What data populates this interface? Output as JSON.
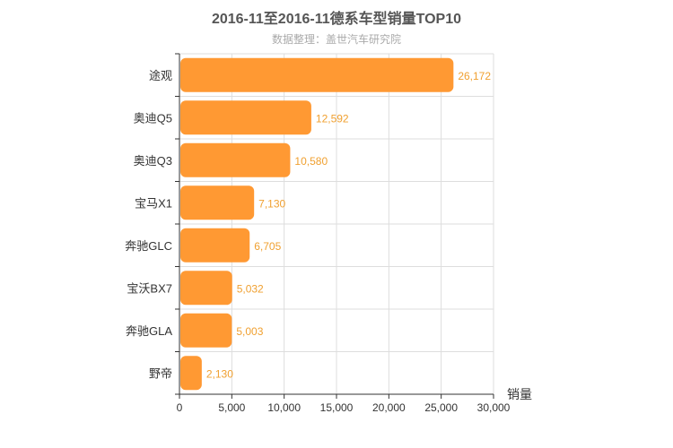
{
  "chart_data": {
    "type": "bar",
    "orientation": "horizontal",
    "title": "2016-11至2016-11德系车型销量TOP10",
    "subtitle": "数据整理：盖世汽车研究院",
    "xlabel": "销量",
    "ylabel": "",
    "categories": [
      "途观",
      "奥迪Q5",
      "奥迪Q3",
      "宝马X1",
      "奔驰GLC",
      "宝沃BX7",
      "奔驰GLA",
      "野帝"
    ],
    "values": [
      26172,
      12592,
      10580,
      7130,
      6705,
      5032,
      5003,
      2130
    ],
    "value_labels": [
      "26,172",
      "12,592",
      "10,580",
      "7,130",
      "6,705",
      "5,032",
      "5,003",
      "2,130"
    ],
    "xlim": [
      0,
      30000
    ],
    "xticks": [
      0,
      5000,
      10000,
      15000,
      20000,
      25000,
      30000
    ],
    "xtick_labels": [
      "0",
      "5,000",
      "10,000",
      "15,000",
      "20,000",
      "25,000",
      "30,000"
    ],
    "grid": true,
    "bar_color": "#ff9933",
    "label_color": "#f0a030"
  }
}
